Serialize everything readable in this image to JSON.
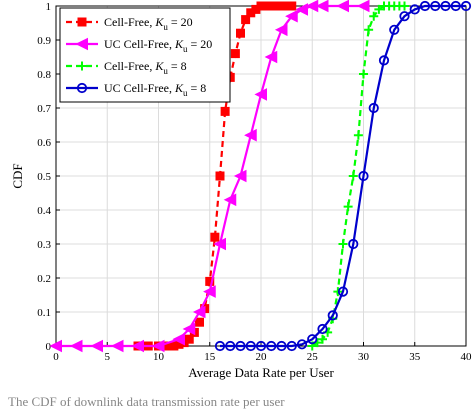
{
  "chart_data": {
    "type": "line",
    "xlabel": "Average Data Rate per User",
    "ylabel": "CDF",
    "xlim": [
      0,
      40
    ],
    "ylim": [
      0,
      1
    ],
    "xticks": [
      0,
      5,
      10,
      15,
      20,
      25,
      30,
      35,
      40
    ],
    "yticks": [
      0,
      0.1,
      0.2,
      0.3,
      0.4,
      0.5,
      0.6,
      0.7,
      0.8,
      0.9,
      1
    ],
    "grid": true,
    "legend_position": "top-left",
    "series": [
      {
        "name": "Cell-Free, K_u = 20",
        "legend_main": "Cell-Free, ",
        "legend_k": "K",
        "legend_sub": "u",
        "legend_eq": " = 20",
        "color": "#ff0000",
        "line_style": "dashed",
        "marker": "square",
        "x": [
          8,
          9,
          10,
          10.5,
          11,
          11.5,
          12,
          12.5,
          13,
          13.5,
          14,
          14.5,
          15,
          15.5,
          16,
          16.5,
          17,
          17.5,
          18,
          18.5,
          19,
          19.5,
          20,
          20.5,
          21,
          21.5,
          22,
          22.5,
          23
        ],
        "y": [
          0,
          0,
          0,
          0,
          0,
          0,
          0.005,
          0.01,
          0.02,
          0.04,
          0.07,
          0.11,
          0.19,
          0.32,
          0.5,
          0.69,
          0.79,
          0.86,
          0.92,
          0.96,
          0.98,
          0.99,
          1,
          1,
          1,
          1,
          1,
          1,
          1
        ]
      },
      {
        "name": "UC Cell-Free, K_u = 20",
        "legend_main": "UC Cell-Free, ",
        "legend_k": "K",
        "legend_sub": "u",
        "legend_eq": " = 20",
        "color": "#ff00ff",
        "line_style": "solid",
        "marker": "triangle-left",
        "x": [
          0,
          2,
          4,
          6,
          8,
          10,
          12,
          13,
          14,
          15,
          16,
          17,
          18,
          19,
          20,
          21,
          22,
          23,
          24,
          25,
          26,
          28,
          30
        ],
        "y": [
          0,
          0,
          0,
          0,
          0,
          0,
          0.02,
          0.05,
          0.1,
          0.16,
          0.3,
          0.43,
          0.5,
          0.62,
          0.74,
          0.85,
          0.93,
          0.97,
          0.99,
          1,
          1,
          1,
          1
        ]
      },
      {
        "name": "Cell-Free, K_u = 8",
        "legend_main": "Cell-Free, ",
        "legend_k": "K",
        "legend_sub": "u",
        "legend_eq": " = 8",
        "color": "#00ff00",
        "line_style": "dashed",
        "marker": "plus",
        "x": [
          25,
          25.5,
          26,
          26.5,
          27,
          27.5,
          28,
          28.5,
          29,
          29.5,
          30,
          30.5,
          31,
          31.5,
          32,
          32.5,
          33,
          33.5,
          34
        ],
        "y": [
          0,
          0.01,
          0.02,
          0.04,
          0.08,
          0.16,
          0.3,
          0.41,
          0.5,
          0.62,
          0.8,
          0.93,
          0.97,
          0.99,
          1,
          1,
          1,
          1,
          1
        ]
      },
      {
        "name": "UC Cell-Free, K_u = 8",
        "legend_main": "UC Cell-Free, ",
        "legend_k": "K",
        "legend_sub": "u",
        "legend_eq": " = 8",
        "color": "#0000cc",
        "line_style": "solid",
        "marker": "circle",
        "x": [
          16,
          17,
          18,
          19,
          20,
          21,
          22,
          23,
          24,
          25,
          26,
          27,
          28,
          29,
          30,
          31,
          32,
          33,
          34,
          35,
          36,
          37,
          38,
          39,
          40
        ],
        "y": [
          0,
          0,
          0,
          0,
          0,
          0,
          0,
          0,
          0.005,
          0.02,
          0.05,
          0.09,
          0.16,
          0.3,
          0.5,
          0.7,
          0.84,
          0.93,
          0.97,
          0.99,
          1,
          1,
          1,
          1,
          1
        ]
      }
    ]
  },
  "caption": {
    "text": "The CDF of downlink data transmission rate per user"
  }
}
